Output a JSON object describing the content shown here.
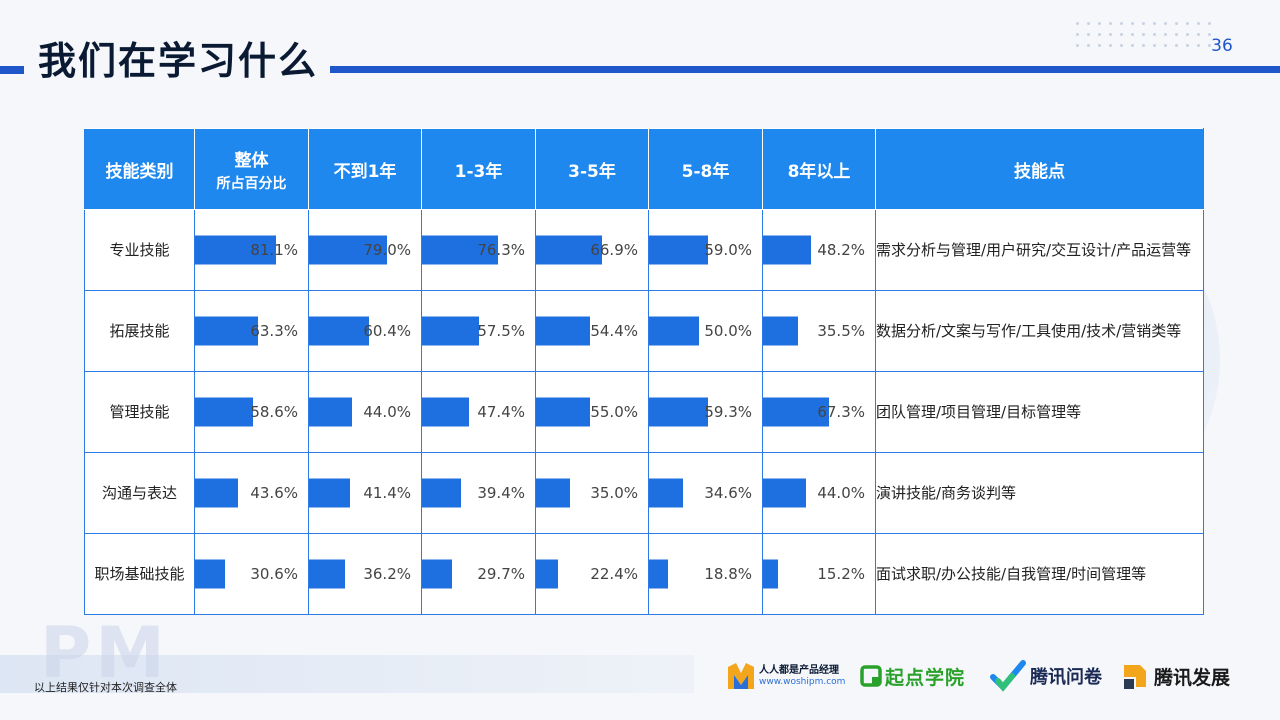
{
  "header": {
    "title": "我们在学习什么",
    "page_number": "36"
  },
  "table": {
    "headers": [
      {
        "label": "技能类别"
      },
      {
        "label": "整体",
        "sub": "所占百分比"
      },
      {
        "label": "不到1年"
      },
      {
        "label": "1-3年"
      },
      {
        "label": "3-5年"
      },
      {
        "label": "5-8年"
      },
      {
        "label": "8年以上"
      },
      {
        "label": "技能点"
      }
    ],
    "rows": [
      {
        "category": "专业技能",
        "values": [
          "81.1%",
          "79.0%",
          "76.3%",
          "66.9%",
          "59.0%",
          "48.2%"
        ],
        "points": "需求分析与管理/用户研究/交互设计/产品运营等"
      },
      {
        "category": "拓展技能",
        "values": [
          "63.3%",
          "60.4%",
          "57.5%",
          "54.4%",
          "50.0%",
          "35.5%"
        ],
        "points": "数据分析/文案与写作/工具使用/技术/营销类等"
      },
      {
        "category": "管理技能",
        "values": [
          "58.6%",
          "44.0%",
          "47.4%",
          "55.0%",
          "59.3%",
          "67.3%"
        ],
        "points": "团队管理/项目管理/目标管理等"
      },
      {
        "category": "沟通与表达",
        "values": [
          "43.6%",
          "41.4%",
          "39.4%",
          "35.0%",
          "34.6%",
          "44.0%"
        ],
        "points": "演讲技能/商务谈判等"
      },
      {
        "category": "职场基础技能",
        "values": [
          "30.6%",
          "36.2%",
          "29.7%",
          "22.4%",
          "18.8%",
          "15.2%"
        ],
        "points": "面试求职/办公技能/自我管理/时间管理等"
      }
    ]
  },
  "footer": {
    "note": "以上结果仅针对本次调查全体",
    "watermark": "PM",
    "logos": {
      "woshipm_name": "人人都是产品经理",
      "woshipm_url": "www.woshipm.com",
      "qidian": "起点学院",
      "wenjuan": "腾讯问卷",
      "fazhan": "腾讯发展"
    }
  },
  "colors": {
    "accent": "#1f56c9",
    "header_bg": "#1e88ee",
    "bar": "#1e6fe0",
    "qidian_green": "#2aa12a"
  }
}
